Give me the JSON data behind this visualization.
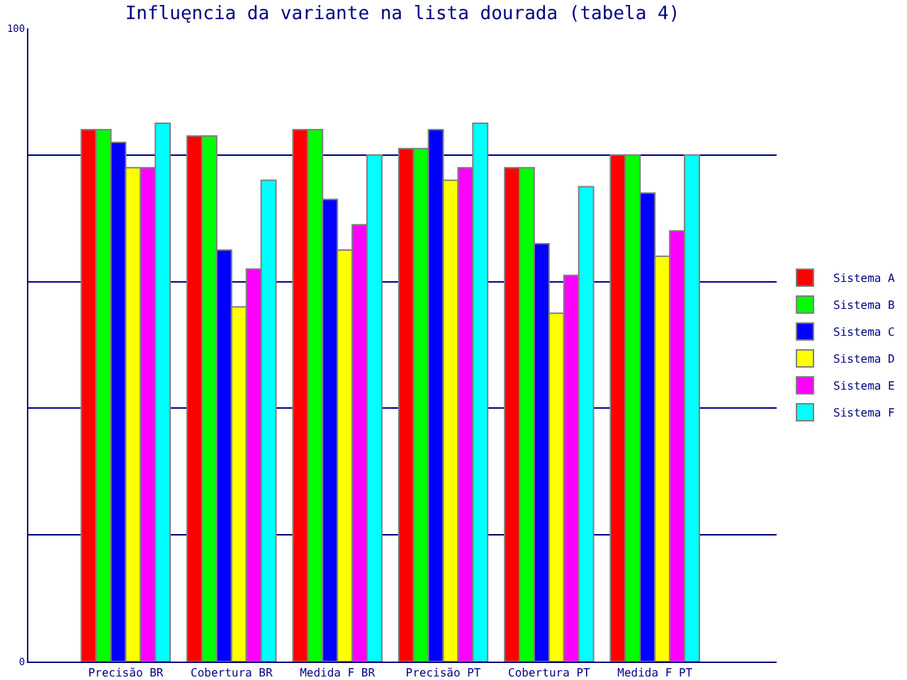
{
  "chart_data": {
    "type": "bar",
    "title": "Influęncia da variante na lista dourada (tabela 4)",
    "categories": [
      "Precisão BR",
      "Cobertura BR",
      "Medida F BR",
      "Precisão PT",
      "Cobertura PT",
      "Medida F PT"
    ],
    "series": [
      {
        "name": "Sistema A",
        "color": "#ff0000",
        "values": [
          84,
          83,
          84,
          81,
          78,
          80
        ]
      },
      {
        "name": "Sistema B",
        "color": "#00ff00",
        "values": [
          84,
          83,
          84,
          81,
          78,
          80
        ]
      },
      {
        "name": "Sistema C",
        "color": "#0000ff",
        "values": [
          82,
          65,
          73,
          84,
          66,
          74
        ]
      },
      {
        "name": "Sistema D",
        "color": "#ffff00",
        "values": [
          78,
          56,
          65,
          76,
          55,
          64
        ]
      },
      {
        "name": "Sistema E",
        "color": "#ff00ff",
        "values": [
          78,
          62,
          69,
          78,
          61,
          68
        ]
      },
      {
        "name": "Sistema F",
        "color": "#00ffff",
        "values": [
          85,
          76,
          80,
          85,
          75,
          80
        ]
      }
    ],
    "ylim": [
      0,
      100
    ],
    "yticks": [
      0,
      {
        "value": 20,
        "label": null
      },
      {
        "value": 40,
        "label": null
      },
      {
        "value": 60,
        "label": null
      },
      {
        "value": 80,
        "label": null
      },
      100
    ],
    "grid": "y",
    "legend": "right"
  }
}
